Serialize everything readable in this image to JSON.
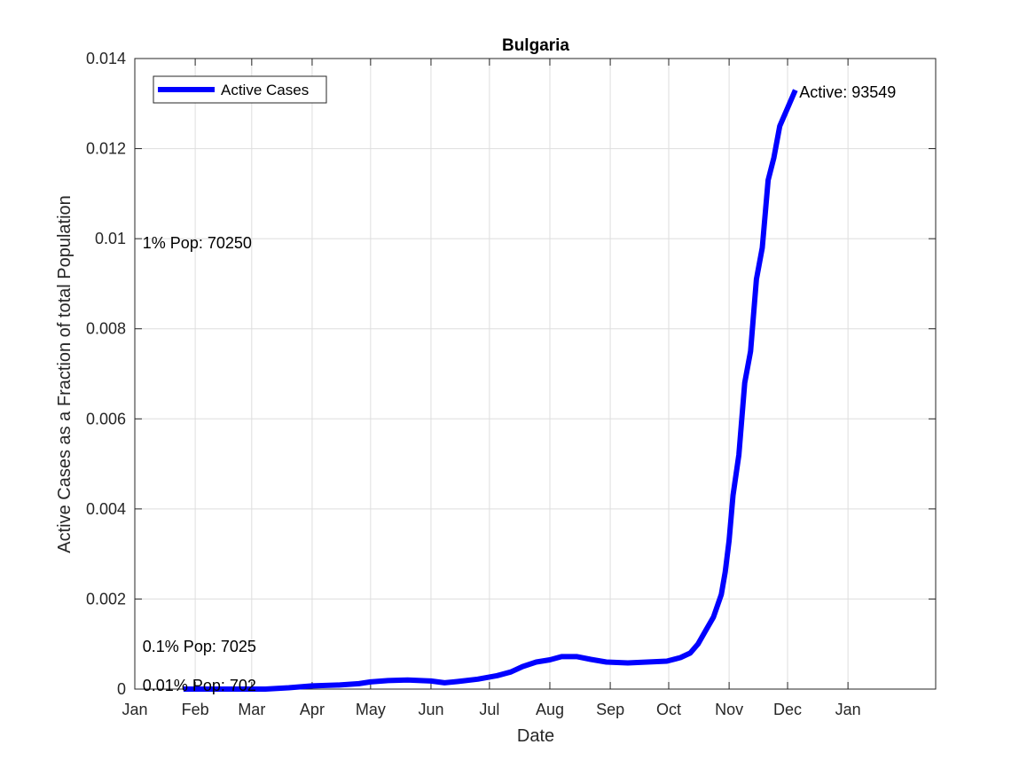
{
  "colors": {
    "series": "#0000ff",
    "grid": "#dedede",
    "axis": "#262626"
  },
  "chart_data": {
    "type": "line",
    "title": "Bulgaria",
    "xlabel": "Date",
    "ylabel": "Active Cases as a Fraction of total Population",
    "xlim": [
      "2020-01-01",
      "2021-02-15"
    ],
    "ylim": [
      0,
      0.014
    ],
    "grid": true,
    "legend_location": "top-left",
    "x_ticks": [
      {
        "date": "2020-01-01",
        "label": "Jan"
      },
      {
        "date": "2020-02-01",
        "label": "Feb"
      },
      {
        "date": "2020-03-01",
        "label": "Mar"
      },
      {
        "date": "2020-04-01",
        "label": "Apr"
      },
      {
        "date": "2020-05-01",
        "label": "May"
      },
      {
        "date": "2020-06-01",
        "label": "Jun"
      },
      {
        "date": "2020-07-01",
        "label": "Jul"
      },
      {
        "date": "2020-08-01",
        "label": "Aug"
      },
      {
        "date": "2020-09-01",
        "label": "Sep"
      },
      {
        "date": "2020-10-01",
        "label": "Oct"
      },
      {
        "date": "2020-11-01",
        "label": "Nov"
      },
      {
        "date": "2020-12-01",
        "label": "Dec"
      },
      {
        "date": "2021-01-01",
        "label": "Jan"
      }
    ],
    "y_ticks": [
      {
        "value": 0,
        "label": "0"
      },
      {
        "value": 0.002,
        "label": "0.002"
      },
      {
        "value": 0.004,
        "label": "0.004"
      },
      {
        "value": 0.006,
        "label": "0.006"
      },
      {
        "value": 0.008,
        "label": "0.008"
      },
      {
        "value": 0.01,
        "label": "0.01"
      },
      {
        "value": 0.012,
        "label": "0.012"
      },
      {
        "value": 0.014,
        "label": "0.014"
      }
    ],
    "series": [
      {
        "name": "Active Cases",
        "color": "#0000ff",
        "x": [
          "2020-01-26",
          "2020-02-15",
          "2020-03-08",
          "2020-03-20",
          "2020-04-01",
          "2020-04-15",
          "2020-04-25",
          "2020-05-01",
          "2020-05-10",
          "2020-05-20",
          "2020-06-01",
          "2020-06-08",
          "2020-06-15",
          "2020-06-25",
          "2020-07-05",
          "2020-07-12",
          "2020-07-18",
          "2020-07-25",
          "2020-08-01",
          "2020-08-07",
          "2020-08-15",
          "2020-08-22",
          "2020-08-30",
          "2020-09-10",
          "2020-09-20",
          "2020-09-30",
          "2020-10-07",
          "2020-10-12",
          "2020-10-16",
          "2020-10-20",
          "2020-10-24",
          "2020-10-28",
          "2020-10-30",
          "2020-11-01",
          "2020-11-03",
          "2020-11-06",
          "2020-11-09",
          "2020-11-12",
          "2020-11-15",
          "2020-11-18",
          "2020-11-21",
          "2020-11-24",
          "2020-11-27",
          "2020-11-30",
          "2020-12-03",
          "2020-12-05"
        ],
        "values": [
          0,
          0,
          0,
          3e-05,
          7e-05,
          9e-05,
          0.00012,
          0.00016,
          0.00019,
          0.0002,
          0.00018,
          0.00014,
          0.00017,
          0.00022,
          0.0003,
          0.00038,
          0.0005,
          0.0006,
          0.00065,
          0.00072,
          0.00072,
          0.00066,
          0.0006,
          0.00058,
          0.0006,
          0.00062,
          0.0007,
          0.0008,
          0.001,
          0.0013,
          0.0016,
          0.0021,
          0.0026,
          0.0033,
          0.0043,
          0.0052,
          0.0068,
          0.0075,
          0.0091,
          0.0098,
          0.0113,
          0.0118,
          0.0125,
          0.0128,
          0.0131,
          0.0133
        ]
      }
    ],
    "annotations": [
      {
        "text": "Active: 93549",
        "x": "2020-12-07",
        "y": 0.01325
      },
      {
        "text": "1% Pop: 70250",
        "x": "2020-01-05",
        "y": 0.0099
      },
      {
        "text": "0.1% Pop: 7025",
        "x": "2020-01-05",
        "y": 0.00095
      },
      {
        "text": "0.01% Pop: 702",
        "x": "2020-01-05",
        "y": 8e-05
      }
    ]
  }
}
